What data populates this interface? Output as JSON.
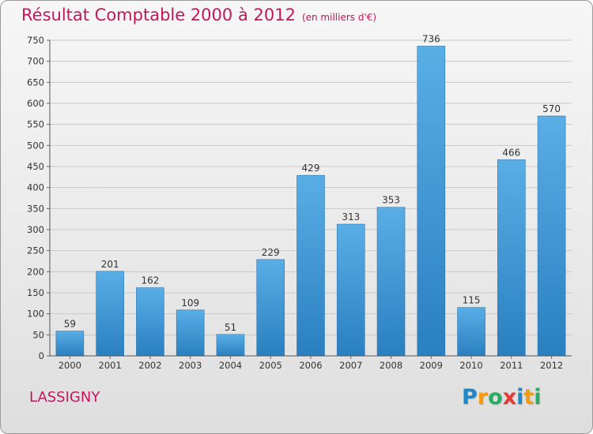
{
  "title": "Résultat Comptable 2000 à 2012",
  "subtitle": "(en milliers d'€)",
  "place": "LASSIGNY",
  "logo": {
    "text": "Proxiti",
    "letters": [
      {
        "ch": "P",
        "color": "#1e88c8"
      },
      {
        "ch": "r",
        "color": "#f39c12"
      },
      {
        "ch": "o",
        "color": "#27ae60"
      },
      {
        "ch": "x",
        "color": "#e53935"
      },
      {
        "ch": "i",
        "color": "#1e88c8"
      },
      {
        "ch": "t",
        "color": "#f39c12"
      },
      {
        "ch": "i",
        "color": "#27ae60"
      }
    ]
  },
  "chart_data": {
    "type": "bar",
    "categories": [
      "2000",
      "2001",
      "2002",
      "2003",
      "2004",
      "2005",
      "2006",
      "2007",
      "2008",
      "2009",
      "2010",
      "2011",
      "2012"
    ],
    "values": [
      59,
      201,
      162,
      109,
      51,
      229,
      429,
      313,
      353,
      736,
      115,
      466,
      570
    ],
    "ylim": [
      0,
      750
    ],
    "yticks": [
      0,
      50,
      100,
      150,
      200,
      250,
      300,
      350,
      400,
      450,
      500,
      550,
      600,
      650,
      700,
      750
    ],
    "grid": true,
    "bar_color_top": "#5aaee6",
    "bar_color_bottom": "#2a7fc0"
  }
}
